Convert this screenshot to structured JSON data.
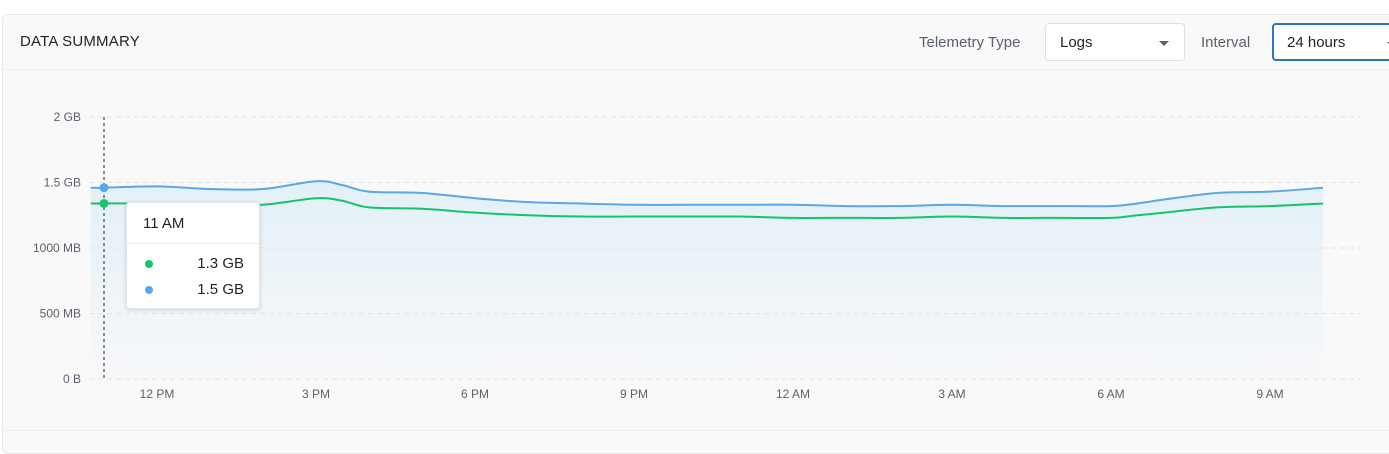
{
  "header": {
    "title": "DATA SUMMARY",
    "telemetry_label": "Telemetry Type",
    "telemetry_value": "Logs",
    "interval_label": "Interval",
    "interval_value": "24 hours"
  },
  "colors": {
    "series_green": "#19c26b",
    "series_blue": "#5aa7e8",
    "fill_top": "#dcecf6",
    "crosshair": "#1f2328"
  },
  "chart_data": {
    "type": "area",
    "x_ticks": [
      "12 PM",
      "3 PM",
      "6 PM",
      "9 PM",
      "12 AM",
      "3 AM",
      "6 AM",
      "9 AM"
    ],
    "y_ticks": [
      "2 GB",
      "1.5 GB",
      "1000 MB",
      "500 MB",
      "0 B"
    ],
    "y_unit": "GB",
    "ylim": [
      0,
      2
    ],
    "x_hours": [
      10.75,
      11,
      12,
      13,
      14,
      15,
      15.5,
      16,
      17,
      18,
      19,
      20,
      21,
      22,
      23,
      24,
      25,
      26,
      27,
      28,
      29,
      30,
      30.5,
      31,
      32,
      33,
      34
    ],
    "series": [
      {
        "values": [
          1.34,
          1.34,
          1.34,
          1.33,
          1.33,
          1.38,
          1.36,
          1.31,
          1.3,
          1.27,
          1.25,
          1.24,
          1.24,
          1.24,
          1.24,
          1.23,
          1.23,
          1.23,
          1.24,
          1.23,
          1.23,
          1.23,
          1.25,
          1.27,
          1.31,
          1.32,
          1.34
        ]
      },
      {
        "values": [
          1.46,
          1.46,
          1.47,
          1.45,
          1.45,
          1.51,
          1.48,
          1.43,
          1.42,
          1.38,
          1.35,
          1.34,
          1.33,
          1.33,
          1.33,
          1.33,
          1.32,
          1.32,
          1.33,
          1.32,
          1.32,
          1.32,
          1.34,
          1.37,
          1.42,
          1.43,
          1.46
        ]
      }
    ],
    "grid": true,
    "legend": "none",
    "crosshair_hour": 11
  },
  "tooltip": {
    "title": "11 AM",
    "rows": [
      {
        "value": "1.3 GB",
        "color": "#19c26b"
      },
      {
        "value": "1.5 GB",
        "color": "#5aa7e8"
      }
    ]
  }
}
